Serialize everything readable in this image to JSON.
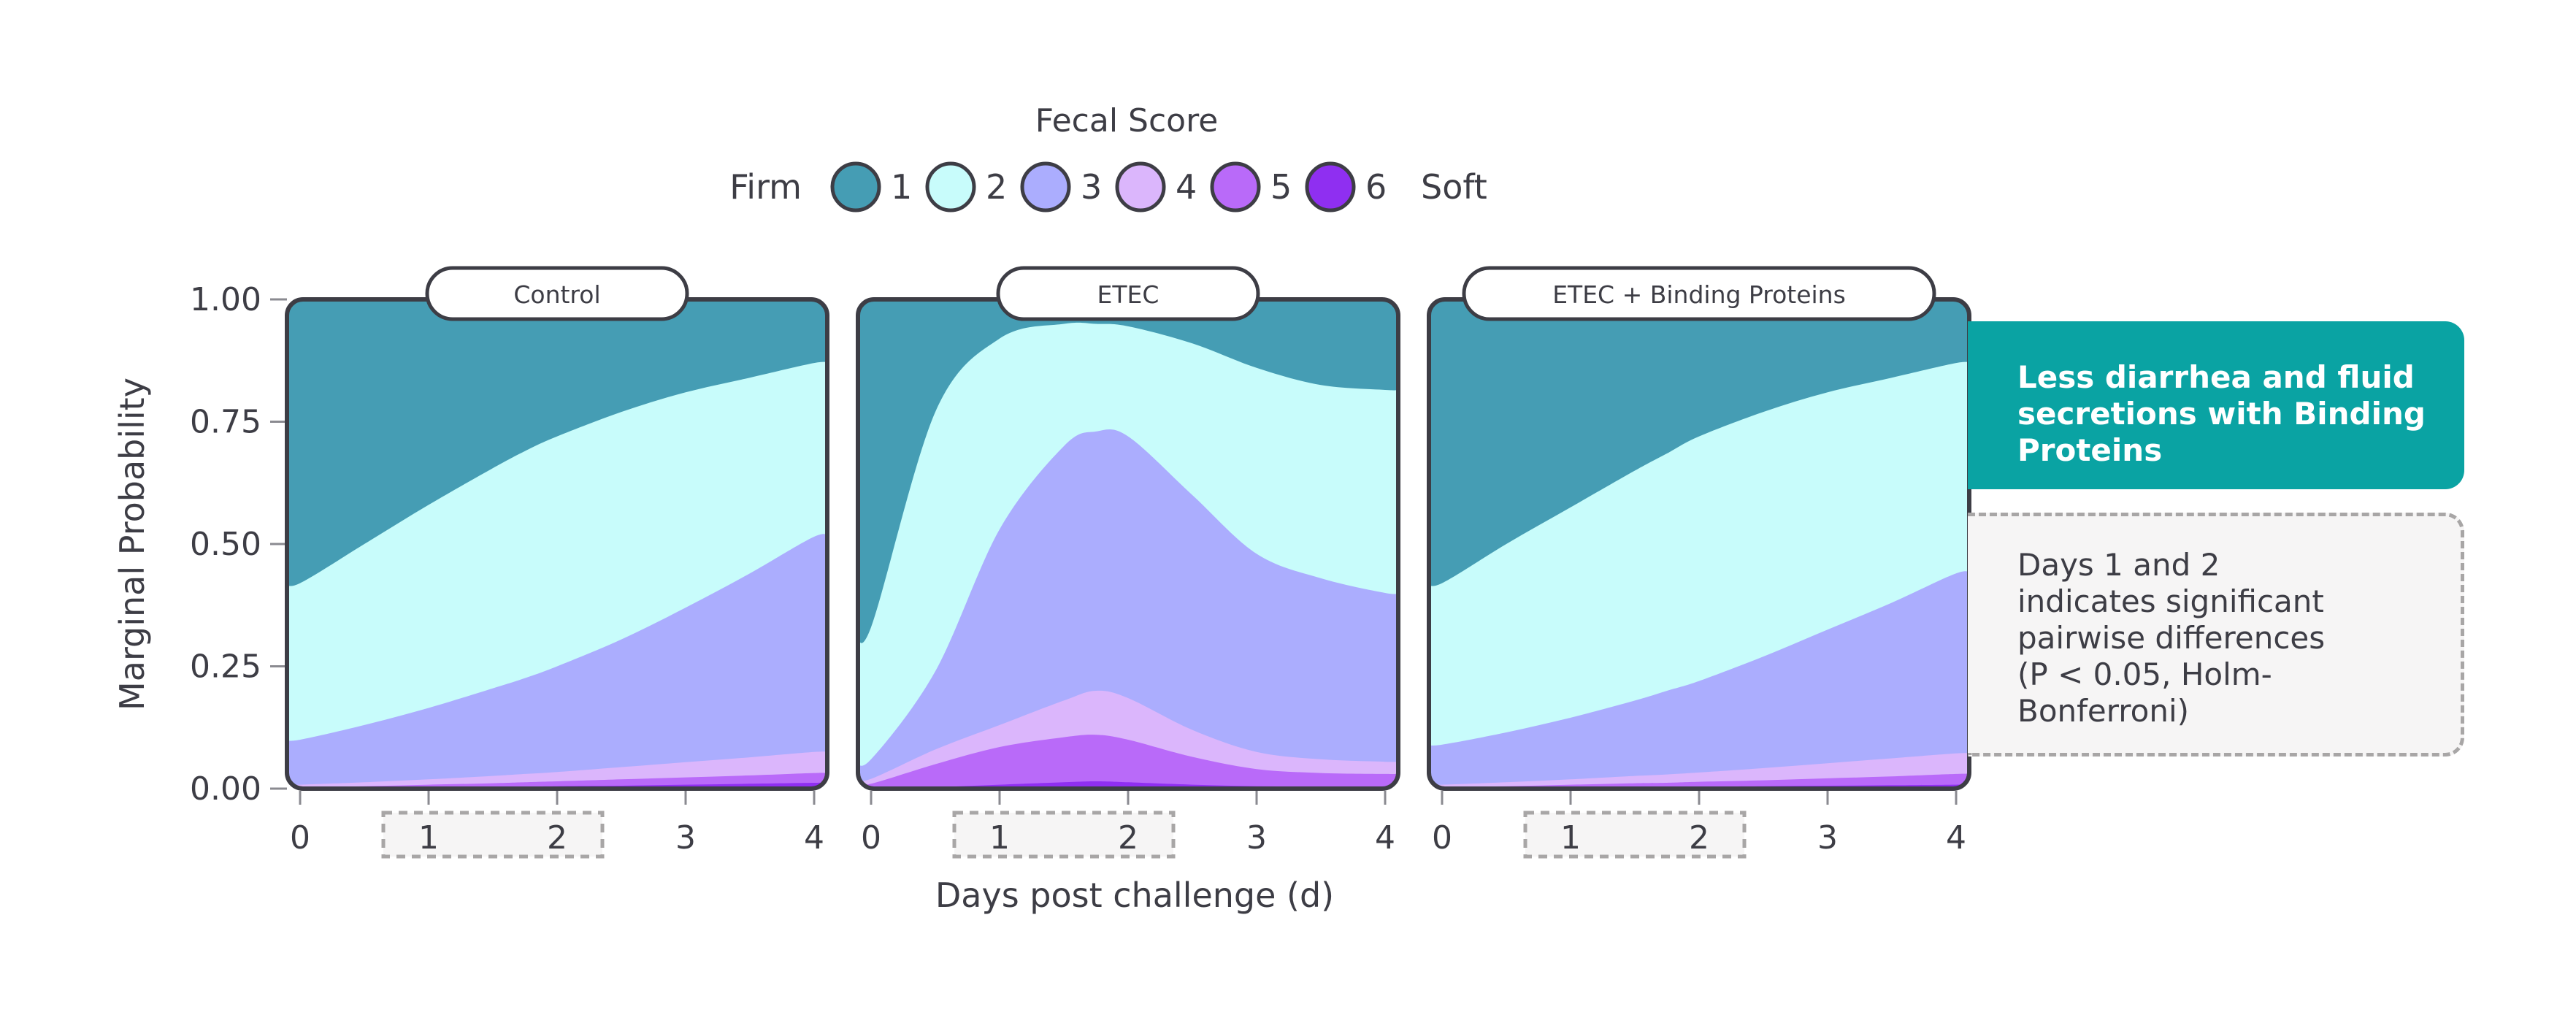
{
  "legend": {
    "title": "Fecal Score",
    "left_label": "Firm",
    "right_label": "Soft",
    "items": [
      {
        "label": "1",
        "color": "#459db4"
      },
      {
        "label": "2",
        "color": "#c8fcfb"
      },
      {
        "label": "3",
        "color": "#abadfe"
      },
      {
        "label": "4",
        "color": "#dbb6fc"
      },
      {
        "label": "5",
        "color": "#b96af9"
      },
      {
        "label": "6",
        "color": "#8f2ff1"
      }
    ]
  },
  "callouts": {
    "highlight": "Less diarrhea and fluid secretions with Binding Proteins",
    "note": "Days 1 and 2\nindicates significant\npairwise differences\n(P < 0.05, Holm-\nBonferroni)"
  },
  "chart_data": {
    "type": "area",
    "stacked": true,
    "ylabel": "Marginal Probability",
    "xlabel": "Days post challenge (d)",
    "ylim": [
      0,
      1
    ],
    "xlim": [
      0,
      4
    ],
    "y_ticks": [
      "0.00",
      "0.25",
      "0.50",
      "0.75",
      "1.00"
    ],
    "x_ticks": [
      "0",
      "1",
      "2",
      "3",
      "4"
    ],
    "highlight_days": [
      1,
      2
    ],
    "x": [
      0,
      0.5,
      1,
      1.5,
      1.75,
      2,
      2.5,
      3,
      3.5,
      4
    ],
    "panels": [
      {
        "title": "Control",
        "cumulative": [
          {
            "score": "6",
            "values": [
              0.0,
              0.001,
              0.002,
              0.003,
              0.004,
              0.005,
              0.006,
              0.008,
              0.01,
              0.012
            ]
          },
          {
            "score": "5",
            "values": [
              0.003,
              0.005,
              0.008,
              0.011,
              0.013,
              0.015,
              0.019,
              0.023,
              0.027,
              0.032
            ]
          },
          {
            "score": "4",
            "values": [
              0.008,
              0.013,
              0.019,
              0.026,
              0.03,
              0.034,
              0.044,
              0.054,
              0.064,
              0.075
            ]
          },
          {
            "score": "3",
            "values": [
              0.1,
              0.13,
              0.165,
              0.205,
              0.226,
              0.25,
              0.305,
              0.37,
              0.44,
              0.515
            ]
          },
          {
            "score": "2",
            "values": [
              0.42,
              0.5,
              0.58,
              0.655,
              0.69,
              0.72,
              0.77,
              0.81,
              0.84,
              0.87
            ]
          }
        ]
      },
      {
        "title": "ETEC",
        "cumulative": [
          {
            "score": "6",
            "values": [
              0.0,
              0.003,
              0.008,
              0.013,
              0.015,
              0.013,
              0.008,
              0.005,
              0.004,
              0.004
            ]
          },
          {
            "score": "5",
            "values": [
              0.01,
              0.05,
              0.085,
              0.105,
              0.11,
              0.1,
              0.065,
              0.04,
              0.032,
              0.03
            ]
          },
          {
            "score": "4",
            "values": [
              0.02,
              0.08,
              0.13,
              0.18,
              0.2,
              0.185,
              0.12,
              0.075,
              0.06,
              0.055
            ]
          },
          {
            "score": "3",
            "values": [
              0.06,
              0.24,
              0.53,
              0.7,
              0.73,
              0.72,
              0.6,
              0.48,
              0.43,
              0.4
            ]
          },
          {
            "score": "2",
            "values": [
              0.33,
              0.77,
              0.92,
              0.95,
              0.95,
              0.945,
              0.91,
              0.86,
              0.825,
              0.815
            ]
          }
        ]
      },
      {
        "title": "ETEC + Binding Proteins",
        "cumulative": [
          {
            "score": "6",
            "values": [
              0.0,
              0.001,
              0.002,
              0.003,
              0.003,
              0.004,
              0.005,
              0.006,
              0.007,
              0.008
            ]
          },
          {
            "score": "5",
            "values": [
              0.003,
              0.005,
              0.008,
              0.011,
              0.012,
              0.014,
              0.017,
              0.021,
              0.025,
              0.03
            ]
          },
          {
            "score": "4",
            "values": [
              0.008,
              0.013,
              0.019,
              0.026,
              0.029,
              0.033,
              0.042,
              0.052,
              0.062,
              0.072
            ]
          },
          {
            "score": "3",
            "values": [
              0.09,
              0.115,
              0.145,
              0.18,
              0.2,
              0.22,
              0.27,
              0.325,
              0.38,
              0.44
            ]
          },
          {
            "score": "2",
            "values": [
              0.42,
              0.5,
              0.575,
              0.65,
              0.685,
              0.72,
              0.77,
              0.81,
              0.84,
              0.87
            ]
          }
        ]
      }
    ]
  }
}
